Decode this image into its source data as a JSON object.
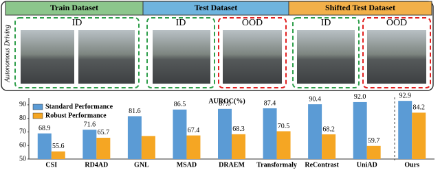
{
  "figure": {
    "headers": [
      "Train Dataset",
      "Test Dataset",
      "Shifted Test Dataset"
    ],
    "side_label": "Autonomous Driving",
    "box_labels": [
      "ID",
      "ID",
      "OOD",
      "ID",
      "OOD"
    ]
  },
  "chart_data": {
    "type": "bar",
    "title": "AUROC(%)",
    "categories": [
      "CSI",
      "RD4AD",
      "GNL",
      "MSAD",
      "DRAEM",
      "Transformaly",
      "ReContrast",
      "UniAD",
      "Ours"
    ],
    "series": [
      {
        "name": "Standard Performance",
        "color": "#5b9bd5",
        "values": [
          68.9,
          71.6,
          81.6,
          86.5,
          87.0,
          87.4,
          90.4,
          92.0,
          92.9
        ],
        "value_labels": [
          "68.9",
          "71.6",
          "81.6",
          "86.5",
          "87.0",
          "87.4",
          "90.4",
          "92.0",
          "92.9"
        ]
      },
      {
        "name": "Robust Performance",
        "color": "#f5a623",
        "values": [
          55.6,
          65.7,
          67.0,
          67.4,
          68.3,
          70.5,
          68.2,
          59.7,
          84.2
        ],
        "value_labels": [
          "55.6",
          "65.7",
          null,
          "67.4",
          "68.3",
          "70.5",
          "68.2",
          "59.7",
          "84.2"
        ]
      }
    ],
    "ylim": [
      50,
      95
    ],
    "yticks": [
      50,
      60,
      70,
      80,
      90
    ],
    "grid": false
  }
}
